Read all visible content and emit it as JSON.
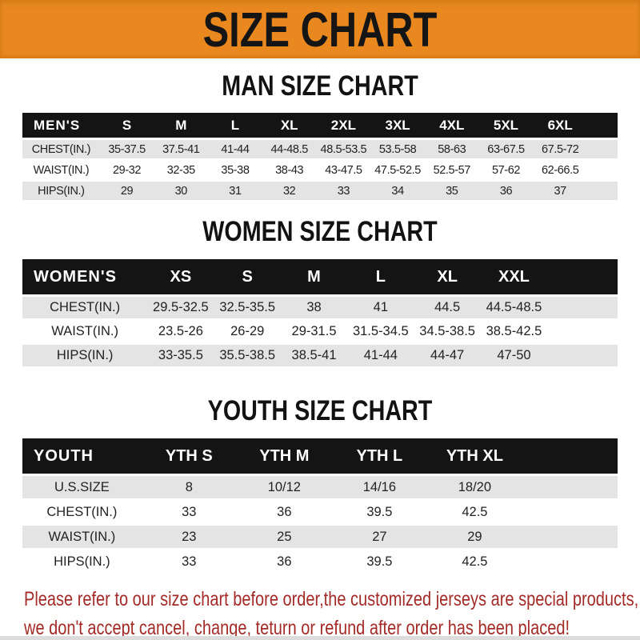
{
  "banner": {
    "title": "SIZE CHART"
  },
  "sections": [
    {
      "title": "MAN SIZE CHART",
      "header_label": "MEN'S",
      "columns": [
        "S",
        "M",
        "L",
        "XL",
        "2XL",
        "3XL",
        "4XL",
        "5XL",
        "6XL"
      ],
      "rows": [
        {
          "label": "CHEST(IN.)",
          "values": [
            "35-37.5",
            "37.5-41",
            "41-44",
            "44-48.5",
            "48.5-53.5",
            "53.5-58",
            "58-63",
            "63-67.5",
            "67.5-72"
          ]
        },
        {
          "label": "WAIST(IN.)",
          "values": [
            "29-32",
            "32-35",
            "35-38",
            "38-43",
            "43-47.5",
            "47.5-52.5",
            "52.5-57",
            "57-62",
            "62-66.5"
          ]
        },
        {
          "label": "HIPS(IN.)",
          "values": [
            "29",
            "30",
            "31",
            "32",
            "33",
            "34",
            "35",
            "36",
            "37"
          ]
        }
      ]
    },
    {
      "title": "WOMEN SIZE CHART",
      "header_label": "WOMEN'S",
      "columns": [
        "XS",
        "S",
        "M",
        "L",
        "XL",
        "XXL"
      ],
      "rows": [
        {
          "label": "CHEST(IN.)",
          "values": [
            "29.5-32.5",
            "32.5-35.5",
            "38",
            "41",
            "44.5",
            "44.5-48.5"
          ]
        },
        {
          "label": "WAIST(IN.)",
          "values": [
            "23.5-26",
            "26-29",
            "29-31.5",
            "31.5-34.5",
            "34.5-38.5",
            "38.5-42.5"
          ]
        },
        {
          "label": "HIPS(IN.)",
          "values": [
            "33-35.5",
            "35.5-38.5",
            "38.5-41",
            "41-44",
            "44-47",
            "47-50"
          ]
        }
      ]
    },
    {
      "title": "YOUTH SIZE CHART",
      "header_label": "YOUTH",
      "columns": [
        "YTH S",
        "YTH M",
        "YTH L",
        "YTH XL"
      ],
      "rows": [
        {
          "label": "U.S.SIZE",
          "values": [
            "8",
            "10/12",
            "14/16",
            "18/20"
          ]
        },
        {
          "label": "CHEST(IN.)",
          "values": [
            "33",
            "36",
            "39.5",
            "42.5"
          ]
        },
        {
          "label": "WAIST(IN.)",
          "values": [
            "23",
            "25",
            "27",
            "29"
          ]
        },
        {
          "label": "HIPS(IN.)",
          "values": [
            "33",
            "36",
            "39.5",
            "42.5"
          ]
        }
      ]
    }
  ],
  "footer": {
    "line1": "Please refer to our size chart before order,the customized jerseys are special products,",
    "line2": "we don't accept cancel, change, teturn or refund after order has been placed!"
  },
  "colors": {
    "banner_bg": "#E9881F",
    "header_bg": "#141414",
    "row_alt_bg": "#E4E4E4",
    "notice_color": "#A32B28"
  }
}
